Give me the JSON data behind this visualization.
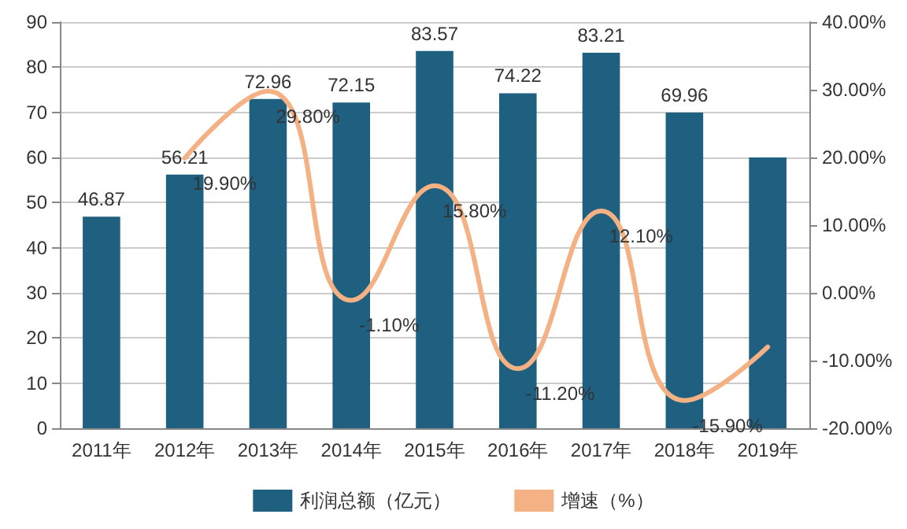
{
  "chart_data": {
    "type": "bar",
    "categories": [
      "2011年",
      "2012年",
      "2013年",
      "2014年",
      "2015年",
      "2016年",
      "2017年",
      "2018年",
      "2019年"
    ],
    "series": [
      {
        "name": "利润总额（亿元）",
        "color": "#1f5f80",
        "values": [
          46.87,
          56.21,
          72.96,
          72.15,
          83.57,
          74.22,
          83.21,
          69.96,
          60
        ],
        "value_labels": [
          "46.87",
          "56.21",
          "72.96",
          "72.15",
          "83.57",
          "74.22",
          "83.21",
          "69.96",
          null
        ]
      },
      {
        "name": "增速（%）",
        "type": "line",
        "axis": "y2",
        "color": "#f4b183",
        "values": [
          null,
          19.9,
          29.8,
          -1.1,
          15.8,
          -11.2,
          12.1,
          -15.9,
          -8
        ],
        "value_labels": [
          null,
          "19.90%",
          "29.80%",
          "-1.10%",
          "15.80%",
          "-11.20%",
          "12.10%",
          "-15.90%",
          null
        ]
      }
    ],
    "ylim": [
      0,
      90
    ],
    "yticks": [
      0,
      10,
      20,
      30,
      40,
      50,
      60,
      70,
      80,
      90
    ],
    "y2lim": [
      -20,
      40
    ],
    "y2ticks": [
      {
        "value": -20,
        "label": "-20.00%"
      },
      {
        "value": -10,
        "label": "-10.00%"
      },
      {
        "value": 0,
        "label": "0.00%"
      },
      {
        "value": 10,
        "label": "10.00%"
      },
      {
        "value": 20,
        "label": "20.00%"
      },
      {
        "value": 30,
        "label": "30.00%"
      },
      {
        "value": 40,
        "label": "40.00%"
      }
    ],
    "grid": "y",
    "legend": "bottom",
    "marker": "none"
  }
}
